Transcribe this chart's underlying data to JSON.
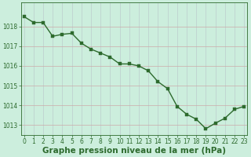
{
  "hours": [
    0,
    1,
    2,
    3,
    4,
    5,
    6,
    7,
    8,
    9,
    10,
    11,
    12,
    13,
    14,
    15,
    16,
    17,
    18,
    19,
    20,
    21,
    22,
    23
  ],
  "pressure": [
    1018.5,
    1018.2,
    1018.2,
    1017.5,
    1017.6,
    1017.65,
    1017.15,
    1016.85,
    1016.65,
    1016.45,
    1016.1,
    1016.1,
    1016.0,
    1015.75,
    1015.2,
    1014.85,
    1013.95,
    1013.55,
    1013.3,
    1012.82,
    1013.1,
    1013.35,
    1013.8,
    1013.95
  ],
  "line_color": "#2d6a2d",
  "marker_color": "#2d6a2d",
  "bg_color": "#cceedd",
  "grid_color_h": "#ccaaaa",
  "grid_color_v": "#bbcccc",
  "xlabel": "Graphe pression niveau de la mer (hPa)",
  "xlabel_color": "#2d6a2d",
  "ylim": [
    1012.5,
    1019.2
  ],
  "yticks": [
    1013,
    1014,
    1015,
    1016,
    1017,
    1018
  ],
  "xticks": [
    0,
    1,
    2,
    3,
    4,
    5,
    6,
    7,
    8,
    9,
    10,
    11,
    12,
    13,
    14,
    15,
    16,
    17,
    18,
    19,
    20,
    21,
    22,
    23
  ],
  "tick_label_color": "#2d6a2d",
  "tick_label_fontsize": 5.5,
  "xlabel_fontsize": 7.5,
  "marker_size": 2.5,
  "line_width": 1.0
}
